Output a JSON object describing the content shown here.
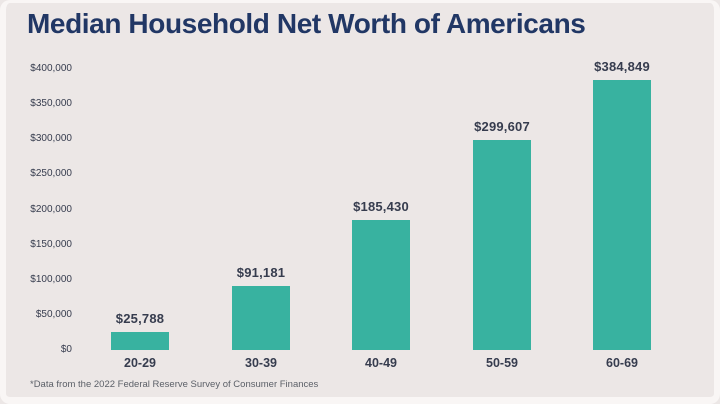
{
  "title": "Median Household Net Worth of Americans",
  "footnote": "*Data from the 2022 Federal Reserve Survey of Consumer Finances",
  "colors": {
    "background": "#ece7e6",
    "frame": "#f9f6f5",
    "bar": "#38b2a0",
    "title": "#213765",
    "label": "#363c4e",
    "footnote": "#5c6068"
  },
  "chart_data": {
    "type": "bar",
    "title": "Median Household Net Worth of Americans",
    "categories": [
      "20-29",
      "30-39",
      "40-49",
      "50-59",
      "60-69"
    ],
    "values": [
      25788,
      91181,
      185430,
      299607,
      384849
    ],
    "value_labels": [
      "$25,788",
      "$91,181",
      "$185,430",
      "$299,607",
      "$384,849"
    ],
    "y_ticks": [
      "$400,000",
      "$350,000",
      "$300,000",
      "$250,000",
      "$200,000",
      "$150,000",
      "$100,000",
      "$50,000",
      "$0"
    ],
    "xlabel": "",
    "ylabel": "",
    "ylim": [
      0,
      400000
    ],
    "grid": false,
    "legend": false,
    "source_note": "*Data from the 2022 Federal Reserve Survey of Consumer Finances"
  }
}
